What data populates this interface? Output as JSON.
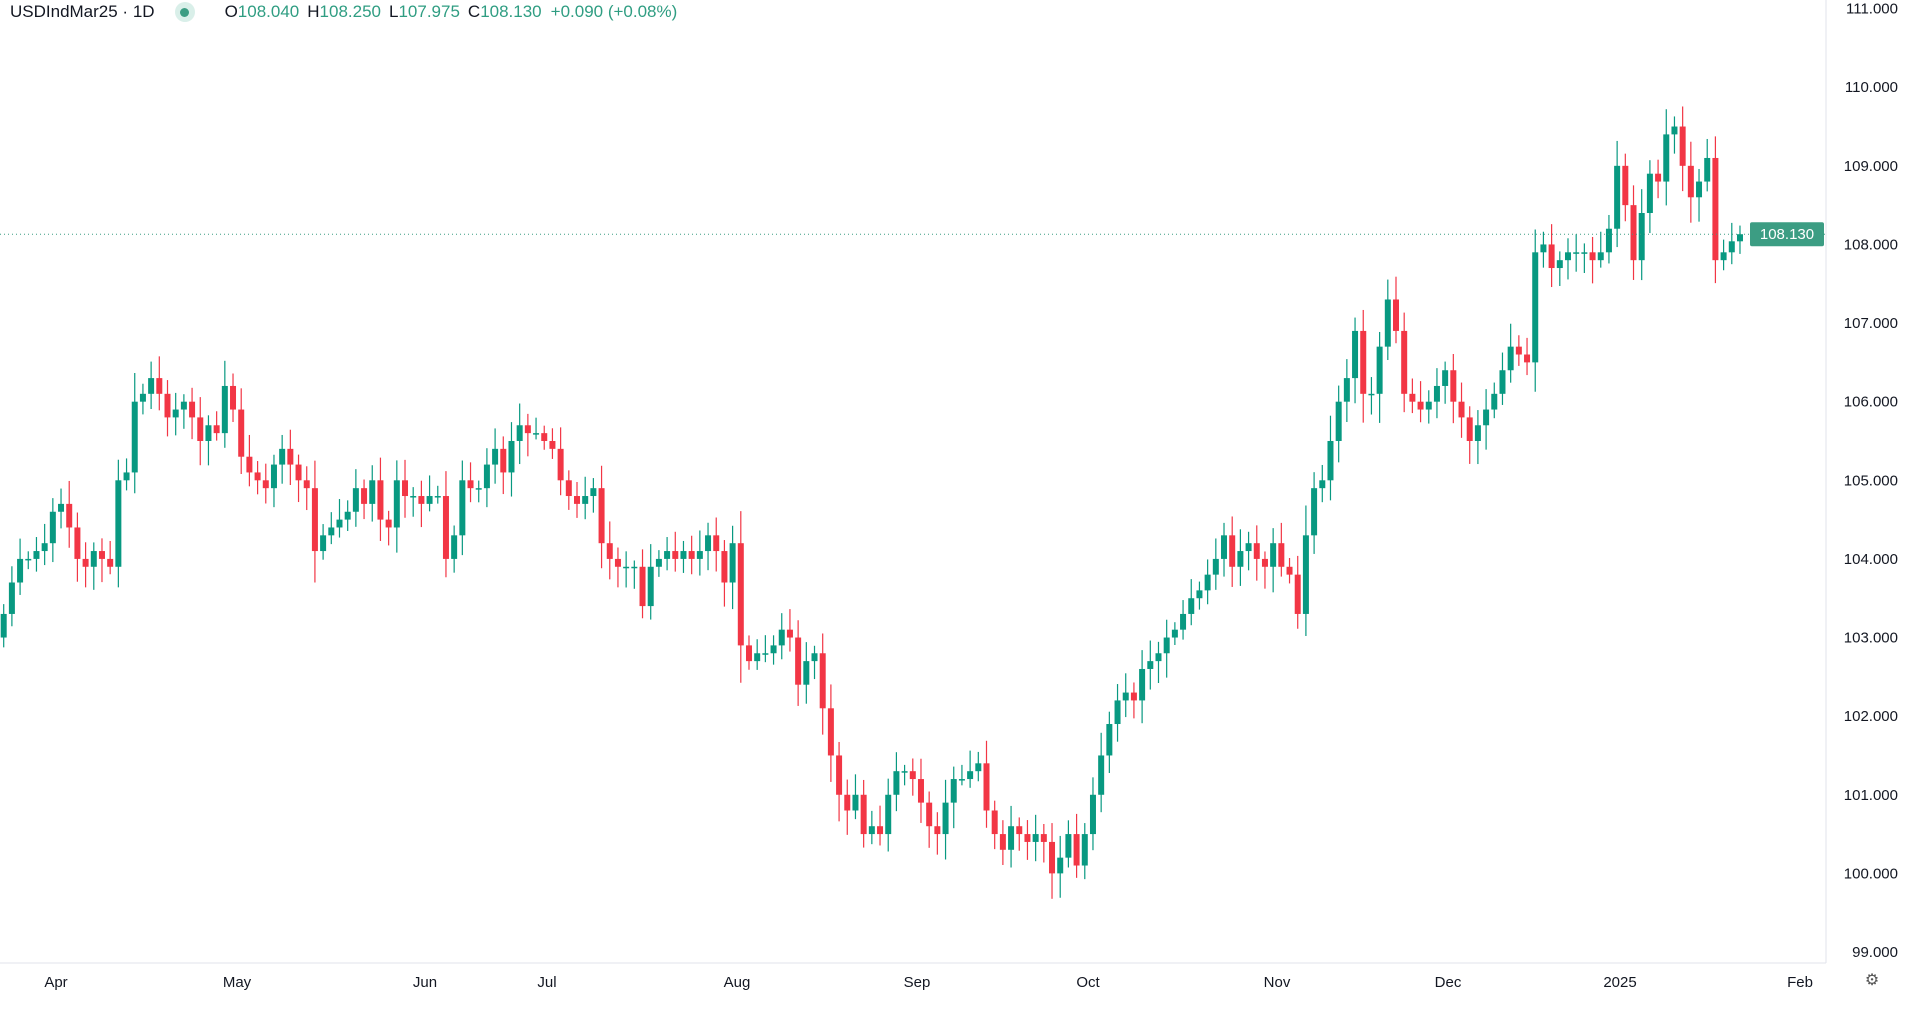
{
  "legend": {
    "symbol": "USDIndMar25 · 1D",
    "open_label": "O",
    "open": "108.040",
    "high_label": "H",
    "high": "108.250",
    "low_label": "L",
    "low": "107.975",
    "close_label": "C",
    "close": "108.130",
    "change": "+0.090 (+0.08%)"
  },
  "colors": {
    "up": "#089981",
    "down": "#f23645",
    "price_line": "#3c9d83",
    "grid": "#e0e3eb"
  },
  "settings_icon": "settings-icon",
  "chart_data": {
    "type": "candlestick",
    "title": "USDIndMar25 · 1D",
    "ylim": [
      99,
      111
    ],
    "y_ticks": [
      "99.000",
      "100.000",
      "101.000",
      "102.000",
      "103.000",
      "104.000",
      "105.000",
      "106.000",
      "107.000",
      "108.000",
      "109.000",
      "110.000",
      "111.000"
    ],
    "x_ticks": [
      "Apr",
      "May",
      "Jun",
      "Jul",
      "Aug",
      "Sep",
      "Oct",
      "Nov",
      "Dec",
      "2025",
      "Feb"
    ],
    "last_price_label": "108.130",
    "first_open": 103.0,
    "closes": [
      103.3,
      103.7,
      104.0,
      104.0,
      104.1,
      104.2,
      104.6,
      104.7,
      104.4,
      104.0,
      103.9,
      104.1,
      104.0,
      103.9,
      105.0,
      105.1,
      106.0,
      106.1,
      106.3,
      106.1,
      105.8,
      105.9,
      106.0,
      105.8,
      105.5,
      105.7,
      105.6,
      106.2,
      105.9,
      105.3,
      105.1,
      105.0,
      104.9,
      105.2,
      105.4,
      105.2,
      105.0,
      104.9,
      104.1,
      104.3,
      104.4,
      104.5,
      104.6,
      104.9,
      104.7,
      105.0,
      104.5,
      104.4,
      105.0,
      104.8,
      104.8,
      104.7,
      104.8,
      104.8,
      104.0,
      104.3,
      105.0,
      104.9,
      104.9,
      105.2,
      105.4,
      105.1,
      105.5,
      105.7,
      105.6,
      105.6,
      105.5,
      105.4,
      105.0,
      104.8,
      104.7,
      104.8,
      104.9,
      104.2,
      104.0,
      103.9,
      103.9,
      103.9,
      103.4,
      103.9,
      104.0,
      104.1,
      104.0,
      104.1,
      104.0,
      104.1,
      104.3,
      104.1,
      103.7,
      104.2,
      102.9,
      102.7,
      102.8,
      102.8,
      102.9,
      103.1,
      103.0,
      102.4,
      102.7,
      102.8,
      102.1,
      101.5,
      101.0,
      100.8,
      101.0,
      100.5,
      100.6,
      100.5,
      101.0,
      101.3,
      101.3,
      101.2,
      100.9,
      100.6,
      100.5,
      100.9,
      101.2,
      101.2,
      101.3,
      101.4,
      100.8,
      100.5,
      100.3,
      100.6,
      100.5,
      100.4,
      100.5,
      100.4,
      100.0,
      100.2,
      100.5,
      100.1,
      100.5,
      101.0,
      101.5,
      101.9,
      102.2,
      102.3,
      102.2,
      102.6,
      102.7,
      102.8,
      103.0,
      103.1,
      103.3,
      103.5,
      103.6,
      103.8,
      104.0,
      104.3,
      103.9,
      104.1,
      104.2,
      104.0,
      103.9,
      104.2,
      103.9,
      103.8,
      103.3,
      104.3,
      104.9,
      105.0,
      105.5,
      106.0,
      106.3,
      106.9,
      106.1,
      106.1,
      106.7,
      107.3,
      106.9,
      106.1,
      106.0,
      105.9,
      106.0,
      106.2,
      106.4,
      106.0,
      105.8,
      105.5,
      105.7,
      105.9,
      106.1,
      106.4,
      106.7,
      106.6,
      106.5,
      107.9,
      108.0,
      107.7,
      107.8,
      107.9,
      107.9,
      107.9,
      107.8,
      107.9,
      108.2,
      109.0,
      108.5,
      107.8,
      108.4,
      108.9,
      108.8,
      109.4,
      109.5,
      109.0,
      108.6,
      108.8,
      109.1,
      107.8,
      107.9,
      108.04,
      108.13
    ]
  }
}
